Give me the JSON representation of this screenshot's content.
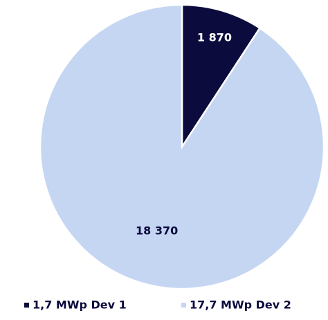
{
  "chart_data": {
    "type": "pie",
    "categories": [
      "1,7 MWp Dev 1",
      "17,7 MWp Dev 2"
    ],
    "values": [
      1870,
      18370
    ],
    "value_labels": [
      "1 870",
      "18 370"
    ],
    "colors": [
      "#0b0b3d",
      "#c5d6f2"
    ],
    "legend": "bottom"
  }
}
